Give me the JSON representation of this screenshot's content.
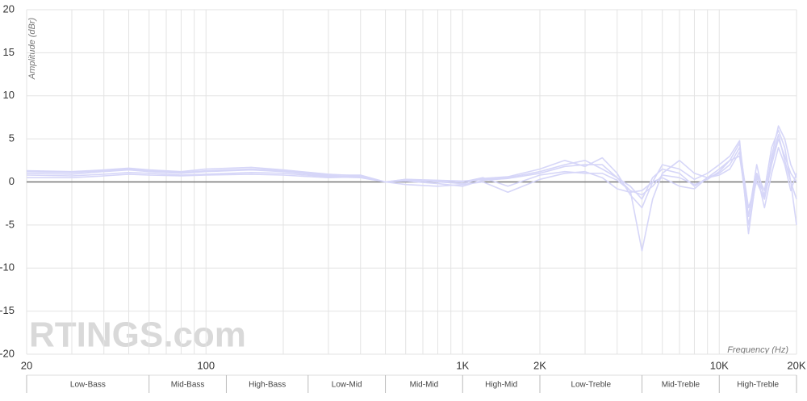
{
  "chart_data": {
    "type": "line",
    "y_label": "Amplitude (dBr)",
    "x_label": "Frequency (Hz)",
    "watermark": "RTINGS.com",
    "xscale": "log",
    "xlim": [
      20,
      20000
    ],
    "ylim": [
      -20,
      20
    ],
    "xticks": [
      20,
      100,
      {
        "value": 1000,
        "label": "1K"
      },
      {
        "value": 2000,
        "label": "2K"
      },
      {
        "value": 10000,
        "label": "10K"
      },
      {
        "value": 20000,
        "label": "20K"
      }
    ],
    "xminor": [
      30,
      40,
      50,
      60,
      70,
      80,
      90,
      200,
      300,
      400,
      500,
      600,
      700,
      800,
      900,
      3000,
      4000,
      5000,
      6000,
      7000,
      8000,
      9000
    ],
    "yticks": [
      -20,
      -15,
      -10,
      -5,
      0,
      5,
      10,
      15,
      20
    ],
    "grid": true,
    "bands": [
      {
        "label": "Low-Bass",
        "range": [
          20,
          60
        ]
      },
      {
        "label": "Mid-Bass",
        "range": [
          60,
          120
        ]
      },
      {
        "label": "High-Bass",
        "range": [
          120,
          250
        ]
      },
      {
        "label": "Low-Mid",
        "range": [
          250,
          500
        ]
      },
      {
        "label": "Mid-Mid",
        "range": [
          500,
          1000
        ]
      },
      {
        "label": "High-Mid",
        "range": [
          1000,
          2000
        ]
      },
      {
        "label": "Low-Treble",
        "range": [
          2000,
          5000
        ]
      },
      {
        "label": "Mid-Treble",
        "range": [
          5000,
          10000
        ]
      },
      {
        "label": "High-Treble",
        "range": [
          10000,
          20000
        ]
      }
    ],
    "x": [
      20,
      30,
      40,
      50,
      60,
      80,
      100,
      150,
      200,
      300,
      400,
      500,
      600,
      800,
      1000,
      1200,
      1500,
      2000,
      2500,
      3000,
      3500,
      4000,
      4500,
      5000,
      5500,
      6000,
      7000,
      8000,
      9000,
      10000,
      11000,
      12000,
      13000,
      14000,
      15000,
      16000,
      17000,
      18000,
      19000,
      20000
    ],
    "series": [
      {
        "color": "#d6d6f8",
        "values": [
          1.3,
          1.2,
          1.4,
          1.6,
          1.4,
          1.2,
          1.5,
          1.7,
          1.4,
          0.9,
          0.7,
          0,
          0.3,
          0.2,
          0.1,
          0.3,
          0.5,
          1.2,
          2.0,
          2.5,
          1.5,
          0.5,
          -1.0,
          -8.0,
          -2.0,
          1.0,
          2.5,
          1.0,
          0.5,
          1.5,
          2.5,
          4.5,
          -4,
          2,
          -2,
          3,
          6.5,
          5,
          2,
          0.5
        ]
      },
      {
        "color": "#d6d6f8",
        "values": [
          1.2,
          1.1,
          1.3,
          1.5,
          1.3,
          1.1,
          1.3,
          1.5,
          1.3,
          0.8,
          0.8,
          0,
          0.2,
          0.0,
          -0.2,
          0.4,
          0.6,
          1.5,
          2.5,
          1.8,
          2.8,
          1.0,
          -1.5,
          -3,
          0,
          2.0,
          1.5,
          0.3,
          1.0,
          2.0,
          3,
          4.8,
          -6,
          1,
          -1,
          4,
          6,
          4,
          0,
          -5
        ]
      },
      {
        "color": "#d6d6f8",
        "values": [
          1.0,
          0.9,
          1.2,
          1.4,
          1.2,
          1.0,
          1.2,
          1.4,
          1.2,
          0.7,
          0.6,
          0,
          0.1,
          -0.2,
          -0.5,
          0.2,
          0.4,
          1.0,
          1.8,
          2.0,
          2.0,
          0.5,
          -0.5,
          -2,
          0.5,
          1.5,
          1.0,
          -0.5,
          0.5,
          1.0,
          2.0,
          4,
          -3,
          0,
          -2,
          2,
          5,
          3,
          1,
          0
        ]
      },
      {
        "color": "#d6d6f8",
        "values": [
          0.8,
          0.7,
          0.9,
          1.1,
          1.0,
          0.8,
          0.9,
          1.1,
          1.0,
          0.6,
          0.5,
          0,
          0.3,
          0.1,
          0.0,
          0.5,
          -0.5,
          0.8,
          1.2,
          1.0,
          1.0,
          0.2,
          -1.0,
          -1.5,
          -0.5,
          0.8,
          0.5,
          -0.3,
          0.3,
          1.2,
          2.5,
          3,
          -4,
          1,
          -3,
          1,
          4,
          2,
          -1,
          1
        ]
      },
      {
        "color": "#d6d6f8",
        "values": [
          0.5,
          0.5,
          0.7,
          0.9,
          0.8,
          0.7,
          0.8,
          0.9,
          0.8,
          0.5,
          0.6,
          0,
          -0.3,
          -0.5,
          -0.3,
          0.0,
          -1.2,
          0.3,
          1.0,
          1.2,
          0.5,
          -0.8,
          -1.2,
          -1.0,
          0.0,
          0.5,
          -0.5,
          -0.8,
          0.5,
          0.8,
          1.5,
          3.5,
          -5,
          0.5,
          -1.5,
          2.5,
          5.5,
          2.5,
          0,
          -2
        ]
      }
    ]
  }
}
